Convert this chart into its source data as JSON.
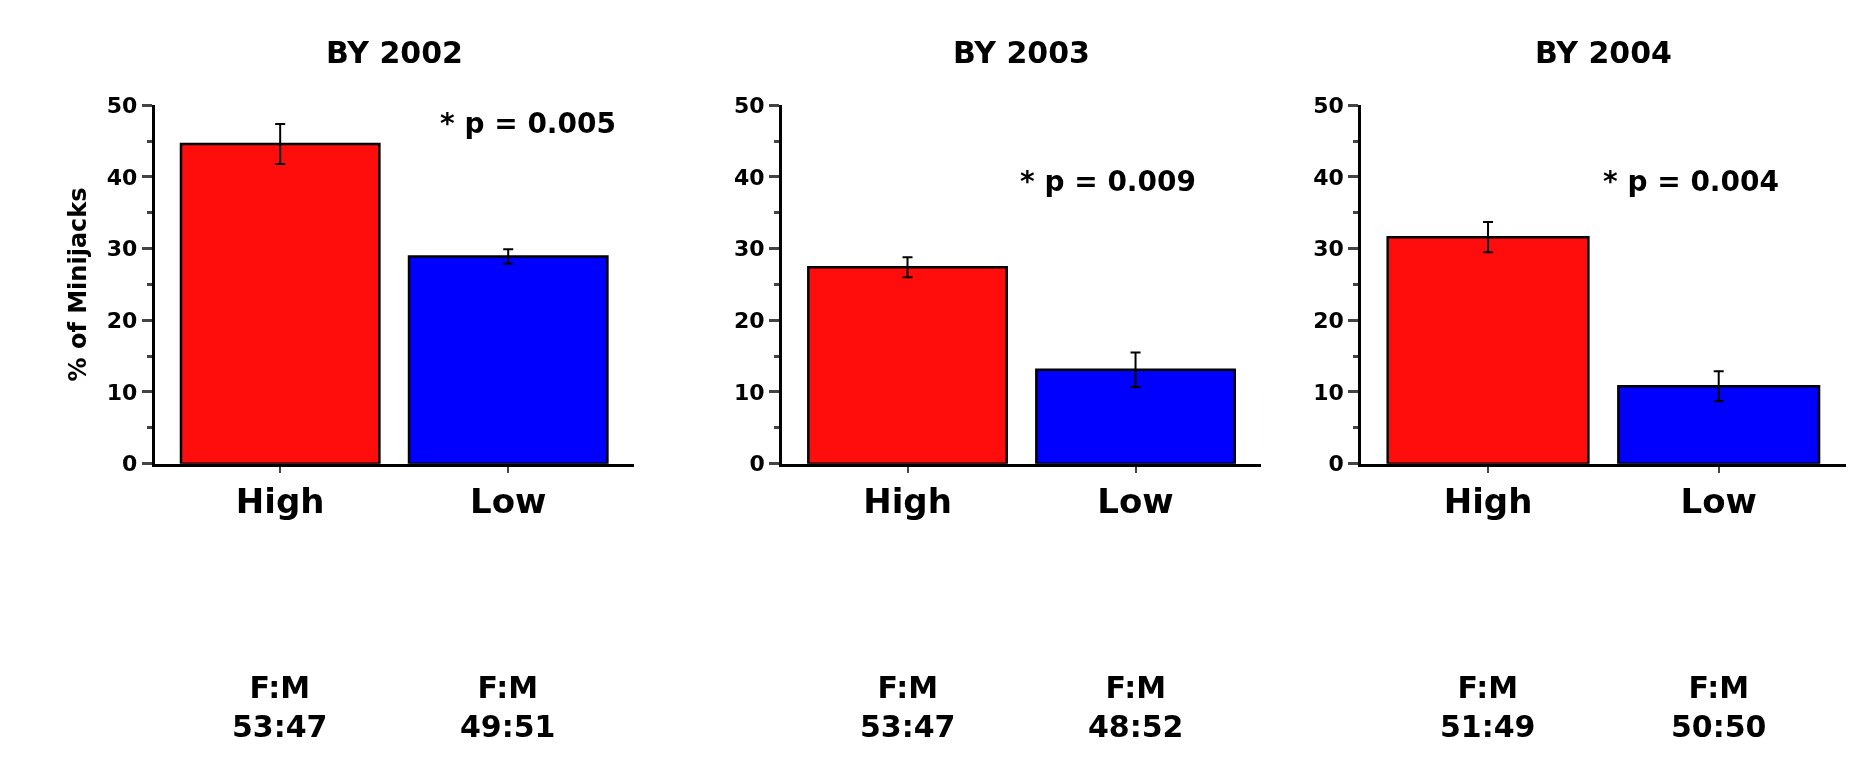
{
  "chart_data": [
    {
      "type": "bar",
      "title": "BY 2002",
      "ylabel": "% of Minijacks",
      "categories": [
        "High",
        "Low"
      ],
      "values": [
        44.6,
        28.9
      ],
      "colors": [
        "#ff0d0d",
        "#0000ff"
      ],
      "errors": [
        2.8,
        1.0
      ],
      "ylim": [
        0,
        50
      ],
      "yticks": [
        0,
        10,
        20,
        30,
        40,
        50
      ],
      "annotations": [
        "* p = 0.005",
        "F:M\n53:47",
        "F:M\n49:51"
      ]
    },
    {
      "type": "bar",
      "title": "BY 2003",
      "categories": [
        "High",
        "Low"
      ],
      "values": [
        27.4,
        13.1
      ],
      "colors": [
        "#ff0d0d",
        "#0000ff"
      ],
      "errors": [
        1.4,
        2.4
      ],
      "ylim": [
        0,
        50
      ],
      "yticks": [
        0,
        10,
        20,
        30,
        40,
        50
      ],
      "annotations": [
        "* p = 0.009",
        "F:M\n53:47",
        "F:M\n48:52"
      ]
    },
    {
      "type": "bar",
      "title": "BY 2004",
      "categories": [
        "High",
        "Low"
      ],
      "values": [
        31.6,
        10.8
      ],
      "colors": [
        "#ff0d0d",
        "#0000ff"
      ],
      "errors": [
        2.1,
        2.1
      ],
      "ylim": [
        0,
        50
      ],
      "yticks": [
        0,
        10,
        20,
        30,
        40,
        50
      ],
      "annotations": [
        "* p = 0.004",
        "F:M\n51:49",
        "F:M\n50:50"
      ]
    }
  ]
}
